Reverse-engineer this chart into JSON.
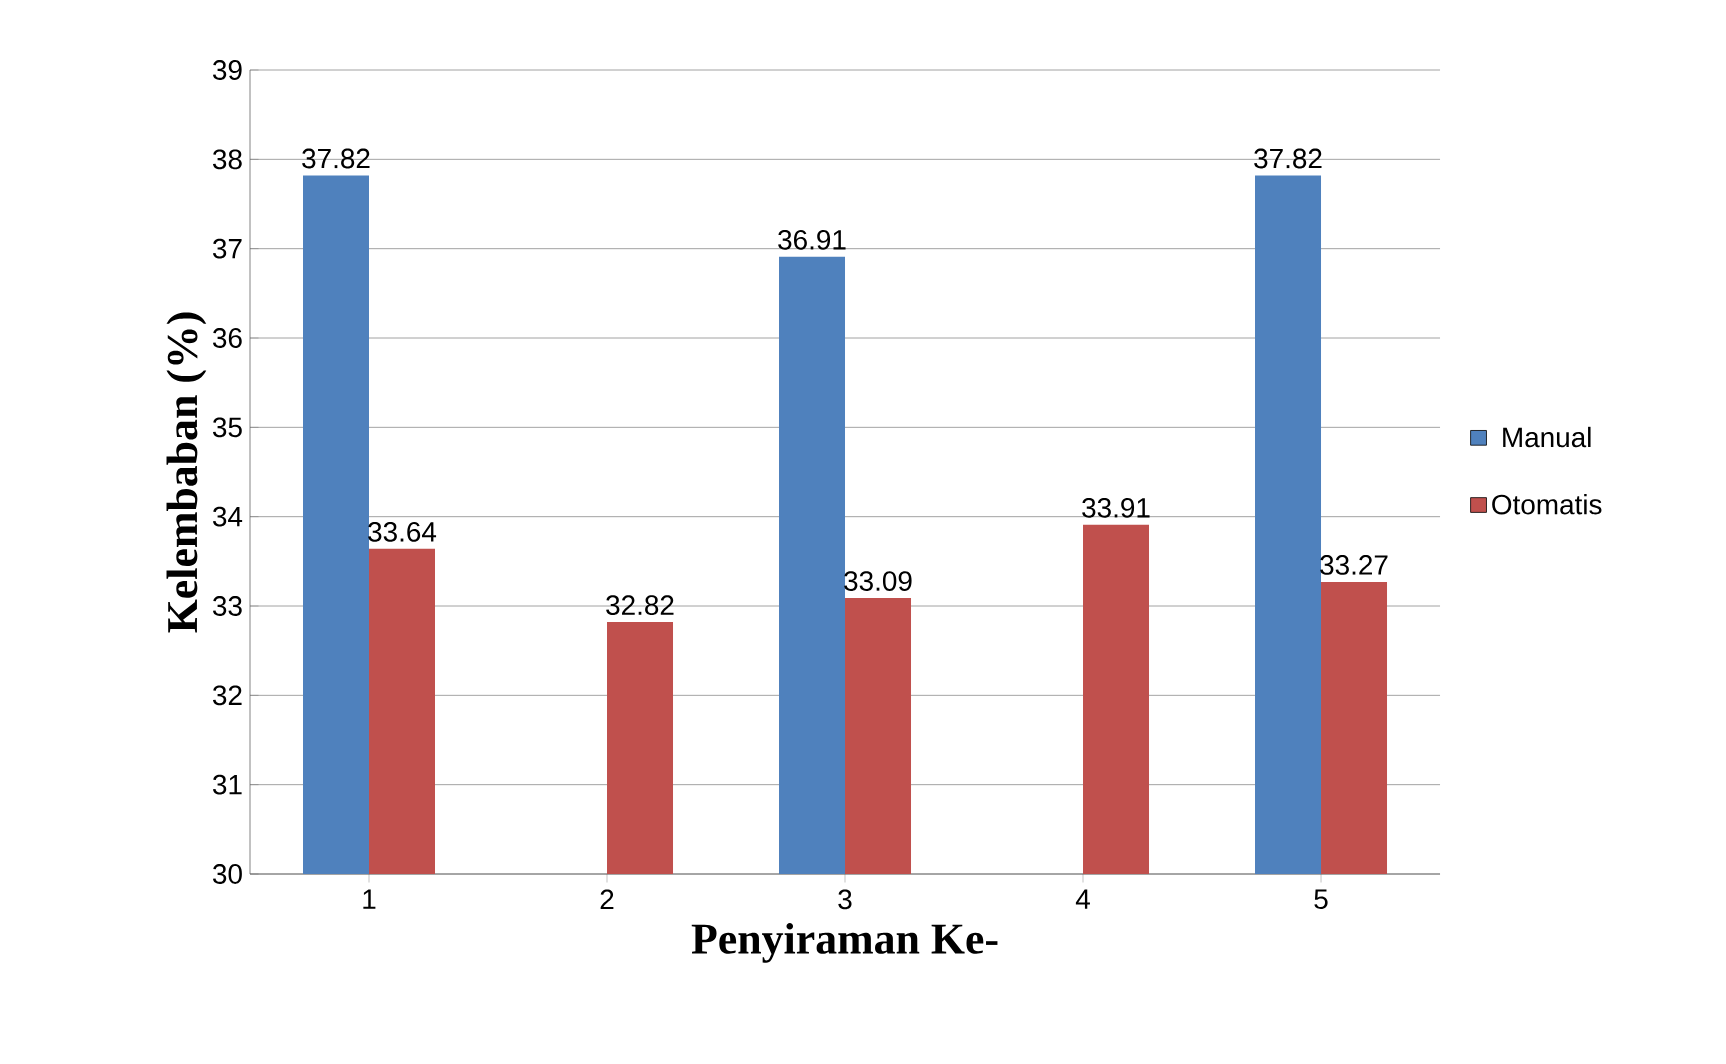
{
  "chart_data": {
    "type": "bar",
    "xlabel": "Penyiraman Ke-",
    "ylabel": "Kelembaban (%)",
    "categories": [
      "1",
      "2",
      "3",
      "4",
      "5"
    ],
    "series": [
      {
        "name": "Manual",
        "color": "#4f81bd",
        "values": [
          37.82,
          null,
          36.91,
          null,
          37.82
        ]
      },
      {
        "name": "Otomatis",
        "color": "#c0504d",
        "values": [
          33.64,
          32.82,
          33.09,
          33.91,
          33.27
        ]
      }
    ],
    "ylim": [
      30,
      39
    ],
    "yticks": [
      30,
      31,
      32,
      33,
      34,
      35,
      36,
      37,
      38,
      39
    ],
    "grid": "y",
    "legend": "right",
    "data_labels": true
  }
}
